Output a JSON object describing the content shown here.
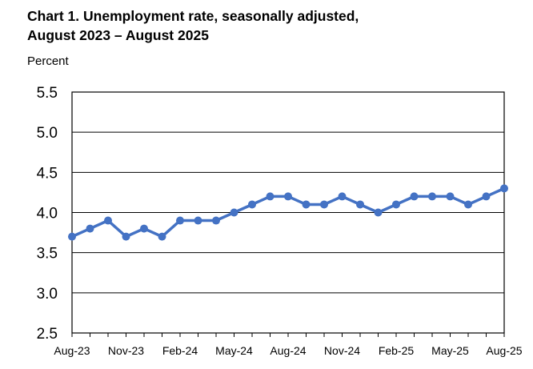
{
  "chart_data": {
    "type": "line",
    "title_line1": "Chart 1. Unemployment rate, seasonally adjusted,",
    "title_line2": "August 2023 – August 2025",
    "ylabel": "Percent",
    "ylim": [
      2.5,
      5.5
    ],
    "yticks": [
      "5.5",
      "5.0",
      "4.5",
      "4.0",
      "3.5",
      "3.0",
      "2.5"
    ],
    "x_tick_labels": [
      "Aug-23",
      "Nov-23",
      "Feb-24",
      "May-24",
      "Aug-24",
      "Nov-24",
      "Feb-25",
      "May-25",
      "Aug-25"
    ],
    "series": [
      {
        "color": "#4472C4",
        "x": [
          "Aug-23",
          "Sep-23",
          "Oct-23",
          "Nov-23",
          "Dec-23",
          "Jan-24",
          "Feb-24",
          "Mar-24",
          "Apr-24",
          "May-24",
          "Jun-24",
          "Jul-24",
          "Aug-24",
          "Sep-24",
          "Oct-24",
          "Nov-24",
          "Dec-24",
          "Jan-25",
          "Feb-25",
          "Mar-25",
          "Apr-25",
          "May-25",
          "Jun-25",
          "Jul-25",
          "Aug-25"
        ],
        "values": [
          3.7,
          3.8,
          3.9,
          3.7,
          3.8,
          3.7,
          3.9,
          3.9,
          3.9,
          4.0,
          4.1,
          4.2,
          4.2,
          4.1,
          4.1,
          4.2,
          4.1,
          4.0,
          4.1,
          4.2,
          4.2,
          4.2,
          4.1,
          4.2,
          4.3
        ]
      }
    ],
    "grid": true
  }
}
